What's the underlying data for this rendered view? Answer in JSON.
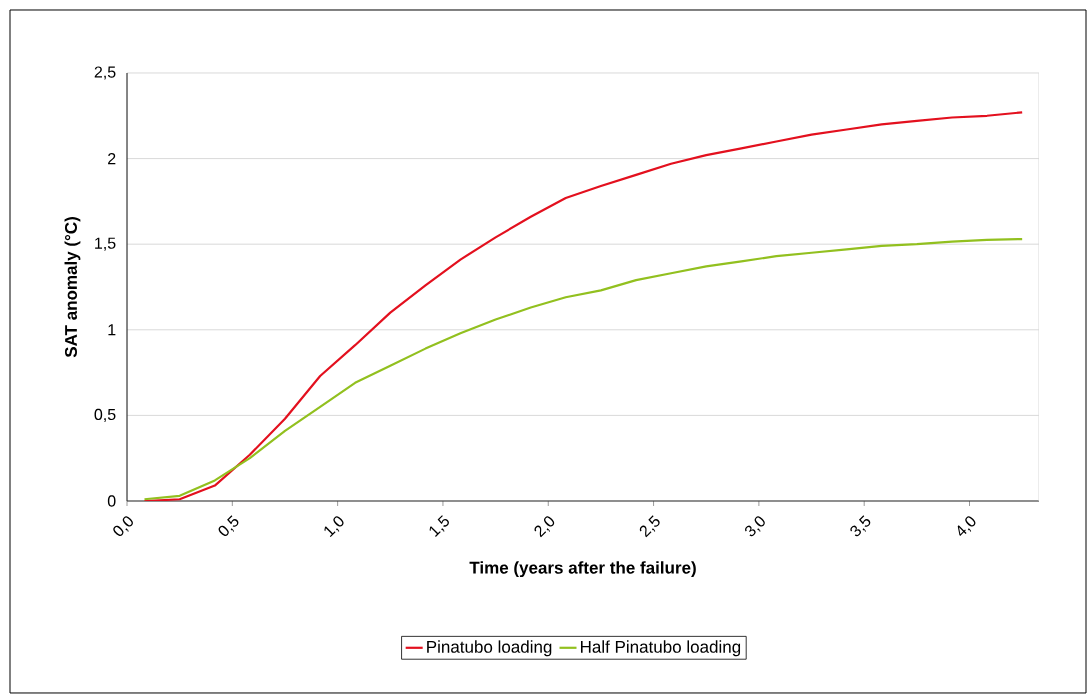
{
  "chart_data": {
    "type": "line",
    "xlabel": "Time (years after the failure)",
    "ylabel": "SAT anomaly (°C)",
    "x": [
      0.083,
      0.25,
      0.417,
      0.583,
      0.75,
      0.917,
      1.083,
      1.25,
      1.417,
      1.583,
      1.75,
      1.917,
      2.083,
      2.25,
      2.417,
      2.583,
      2.75,
      2.917,
      3.083,
      3.25,
      3.417,
      3.583,
      3.75,
      3.917,
      4.083,
      4.25
    ],
    "series": [
      {
        "name": "Pinatubo loading",
        "color": "#e3101e",
        "values": [
          0.0,
          0.01,
          0.09,
          0.27,
          0.48,
          0.73,
          0.91,
          1.1,
          1.26,
          1.41,
          1.54,
          1.66,
          1.77,
          1.84,
          1.905,
          1.97,
          2.02,
          2.06,
          2.1,
          2.14,
          2.17,
          2.2,
          2.22,
          2.24,
          2.25,
          2.27
        ]
      },
      {
        "name": "Half Pinatubo loading",
        "color": "#92c01f",
        "values": [
          0.01,
          0.03,
          0.12,
          0.25,
          0.41,
          0.55,
          0.69,
          0.79,
          0.89,
          0.98,
          1.06,
          1.13,
          1.19,
          1.23,
          1.29,
          1.33,
          1.37,
          1.4,
          1.43,
          1.45,
          1.47,
          1.49,
          1.5,
          1.515,
          1.525,
          1.53
        ]
      }
    ],
    "xlim": [
      0,
      4.33
    ],
    "ylim": [
      0,
      2.5
    ],
    "xticks": [
      {
        "value": 0,
        "label": "0,0"
      },
      {
        "value": 0.5,
        "label": "0,5"
      },
      {
        "value": 1,
        "label": "1,0"
      },
      {
        "value": 1.5,
        "label": "1,5"
      },
      {
        "value": 2,
        "label": "2,0"
      },
      {
        "value": 2.5,
        "label": "2,5"
      },
      {
        "value": 3,
        "label": "3,0"
      },
      {
        "value": 3.5,
        "label": "3,5"
      },
      {
        "value": 4,
        "label": "4,0"
      }
    ],
    "yticks": [
      0,
      {
        "value": 0.5,
        "label": "0,5"
      },
      1,
      {
        "value": 1.5,
        "label": "1,5"
      },
      2,
      {
        "value": 2.5,
        "label": "2,5"
      }
    ],
    "grid": "y",
    "legend": "bottom"
  }
}
